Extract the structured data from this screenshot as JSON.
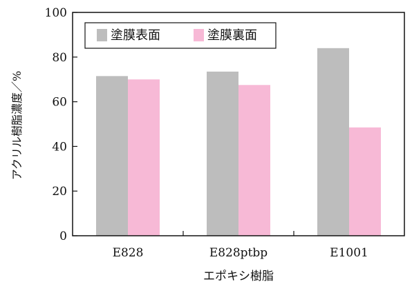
{
  "chart_data": {
    "type": "bar",
    "categories": [
      "E828",
      "E828ptbp",
      "E1001"
    ],
    "series": [
      {
        "name": "塗膜表面",
        "values": [
          71.5,
          73.5,
          84
        ],
        "color": "#bdbdbd"
      },
      {
        "name": "塗膜裏面",
        "values": [
          70,
          67.5,
          48.5
        ],
        "color": "#f7b9d6"
      }
    ],
    "xlabel": "エポキシ樹脂",
    "ylabel": "アクリル樹脂濃度／%",
    "ylim": [
      0,
      100
    ],
    "yticks": [
      "0",
      "20",
      "40",
      "60",
      "80",
      "100"
    ],
    "legend_position": "top-left",
    "grid": false
  }
}
